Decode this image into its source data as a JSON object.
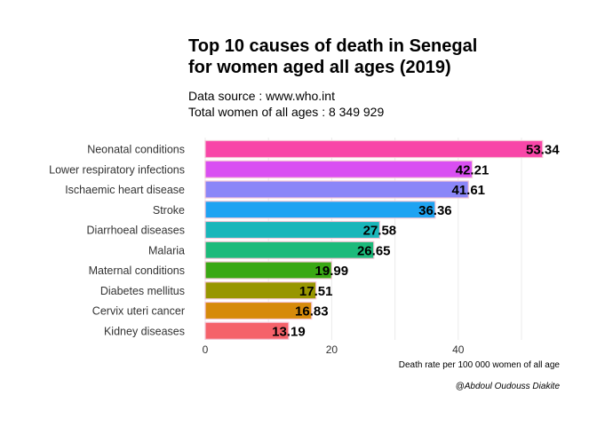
{
  "chart_data": {
    "type": "bar",
    "orientation": "horizontal",
    "title": [
      "Top 10 causes of death in Senegal",
      "for women aged all ages (2019)"
    ],
    "subtitle": [
      "Data source : www.who.int",
      "Total women of all ages : 8 349 929"
    ],
    "xlabel": "Death rate per 100 000 women of all age",
    "caption": "@Abdoul Oudouss Diakite",
    "xlim": [
      0,
      53.34
    ],
    "xticks": [
      0,
      20,
      40
    ],
    "grid": true,
    "categories": [
      "Neonatal conditions",
      "Lower respiratory infections",
      "Ischaemic heart disease",
      "Stroke",
      "Diarrhoeal diseases",
      "Malaria",
      "Maternal conditions",
      "Diabetes mellitus",
      "Cervix uteri cancer",
      "Kidney diseases"
    ],
    "values": [
      53.34,
      42.21,
      41.61,
      36.36,
      27.58,
      26.65,
      19.99,
      17.51,
      16.83,
      13.19
    ],
    "value_labels": [
      "53.34",
      "42.21",
      "41.61",
      "36.36",
      "27.58",
      "26.65",
      "19.99",
      "17.51",
      "16.83",
      "13.19"
    ],
    "colors": [
      "#f846a8",
      "#d94ff2",
      "#8b86f8",
      "#1fa3f2",
      "#19b6ba",
      "#1cba7b",
      "#3aa814",
      "#989600",
      "#d68a0a",
      "#f5626a"
    ]
  }
}
